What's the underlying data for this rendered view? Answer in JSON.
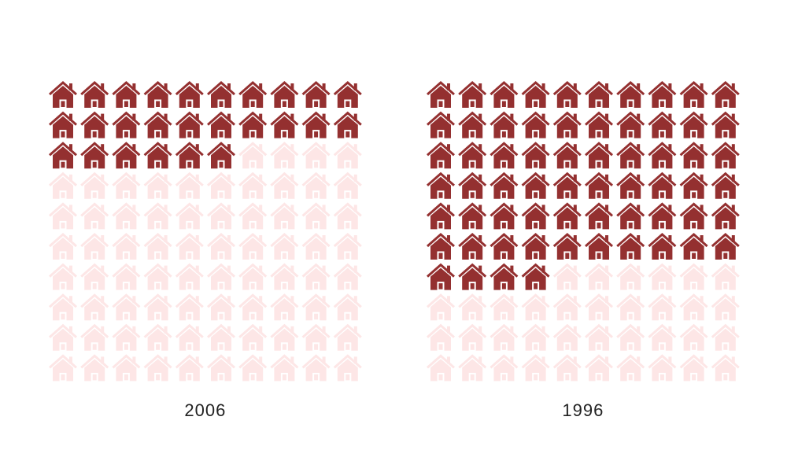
{
  "chart_data": [
    {
      "type": "waffle",
      "title": "2006",
      "values": [
        26
      ],
      "total": 100,
      "columns": 10,
      "color": "#943030",
      "empty_color": "#fde6e6"
    },
    {
      "type": "waffle",
      "title": "1996",
      "values": [
        64
      ],
      "total": 100,
      "columns": 10,
      "color": "#943030",
      "empty_color": "#fde6e6"
    }
  ]
}
